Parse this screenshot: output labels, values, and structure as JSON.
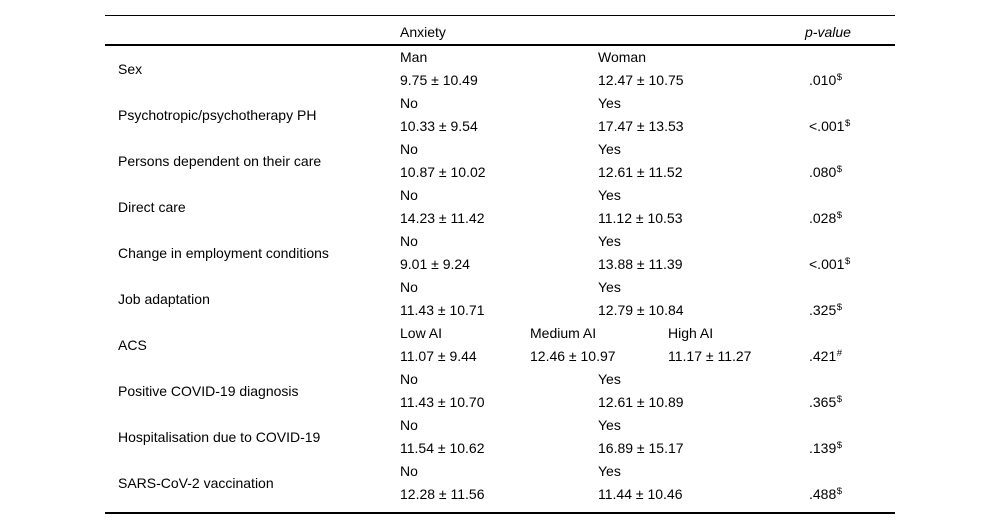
{
  "page": {
    "background_color": "#ffffff",
    "text_color": "#000000"
  },
  "table": {
    "header": {
      "group_label": "Anxiety",
      "p_label": "p-value"
    },
    "rows": [
      {
        "label": "Sex",
        "cells": [
          {
            "col": 1,
            "level": "Man",
            "value": "9.75 ± 10.49"
          },
          {
            "col": 3,
            "level": "Woman",
            "value": "12.47 ± 10.75"
          }
        ],
        "p": ".010",
        "p_sup": "$"
      },
      {
        "label": "Psychotropic/psychotherapy PH",
        "cells": [
          {
            "col": 1,
            "level": "No",
            "value": "10.33 ± 9.54"
          },
          {
            "col": 3,
            "level": "Yes",
            "value": "17.47 ± 13.53"
          }
        ],
        "p": "<.001",
        "p_sup": "$"
      },
      {
        "label": "Persons dependent on their care",
        "cells": [
          {
            "col": 1,
            "level": "No",
            "value": "10.87 ± 10.02"
          },
          {
            "col": 3,
            "level": "Yes",
            "value": "12.61 ± 11.52"
          }
        ],
        "p": ".080",
        "p_sup": "$"
      },
      {
        "label": "Direct care",
        "cells": [
          {
            "col": 1,
            "level": "No",
            "value": "14.23 ± 11.42"
          },
          {
            "col": 3,
            "level": "Yes",
            "value": "11.12 ± 10.53"
          }
        ],
        "p": ".028",
        "p_sup": "$"
      },
      {
        "label": "Change in employment conditions",
        "cells": [
          {
            "col": 1,
            "level": "No",
            "value": "9.01 ± 9.24"
          },
          {
            "col": 3,
            "level": "Yes",
            "value": "13.88 ± 11.39"
          }
        ],
        "p": "<.001",
        "p_sup": "$"
      },
      {
        "label": "Job adaptation",
        "cells": [
          {
            "col": 1,
            "level": "No",
            "value": "11.43 ± 10.71"
          },
          {
            "col": 3,
            "level": "Yes",
            "value": "12.79 ± 10.84"
          }
        ],
        "p": ".325",
        "p_sup": "$"
      },
      {
        "label": "ACS",
        "cells": [
          {
            "col": 1,
            "level": "Low AI",
            "value": "11.07 ± 9.44"
          },
          {
            "col": 2,
            "level": "Medium AI",
            "value": "12.46 ± 10.97"
          },
          {
            "col": 4,
            "level": "High AI",
            "value": "11.17 ± 11.27"
          }
        ],
        "p": ".421",
        "p_sup": "#"
      },
      {
        "label": "Positive COVID-19 diagnosis",
        "cells": [
          {
            "col": 1,
            "level": "No",
            "value": "11.43 ± 10.70"
          },
          {
            "col": 3,
            "level": "Yes",
            "value": "12.61 ± 10.89"
          }
        ],
        "p": ".365",
        "p_sup": "$"
      },
      {
        "label": "Hospitalisation due to COVID-19",
        "cells": [
          {
            "col": 1,
            "level": "No",
            "value": "11.54 ± 10.62"
          },
          {
            "col": 3,
            "level": "Yes",
            "value": "16.89 ± 15.17"
          }
        ],
        "p": ".139",
        "p_sup": "$"
      },
      {
        "label": "SARS-CoV-2 vaccination",
        "cells": [
          {
            "col": 1,
            "level": "No",
            "value": "12.28 ± 11.56"
          },
          {
            "col": 3,
            "level": "Yes",
            "value": "11.44 ± 10.46"
          }
        ],
        "p": ".488",
        "p_sup": "$"
      }
    ]
  }
}
